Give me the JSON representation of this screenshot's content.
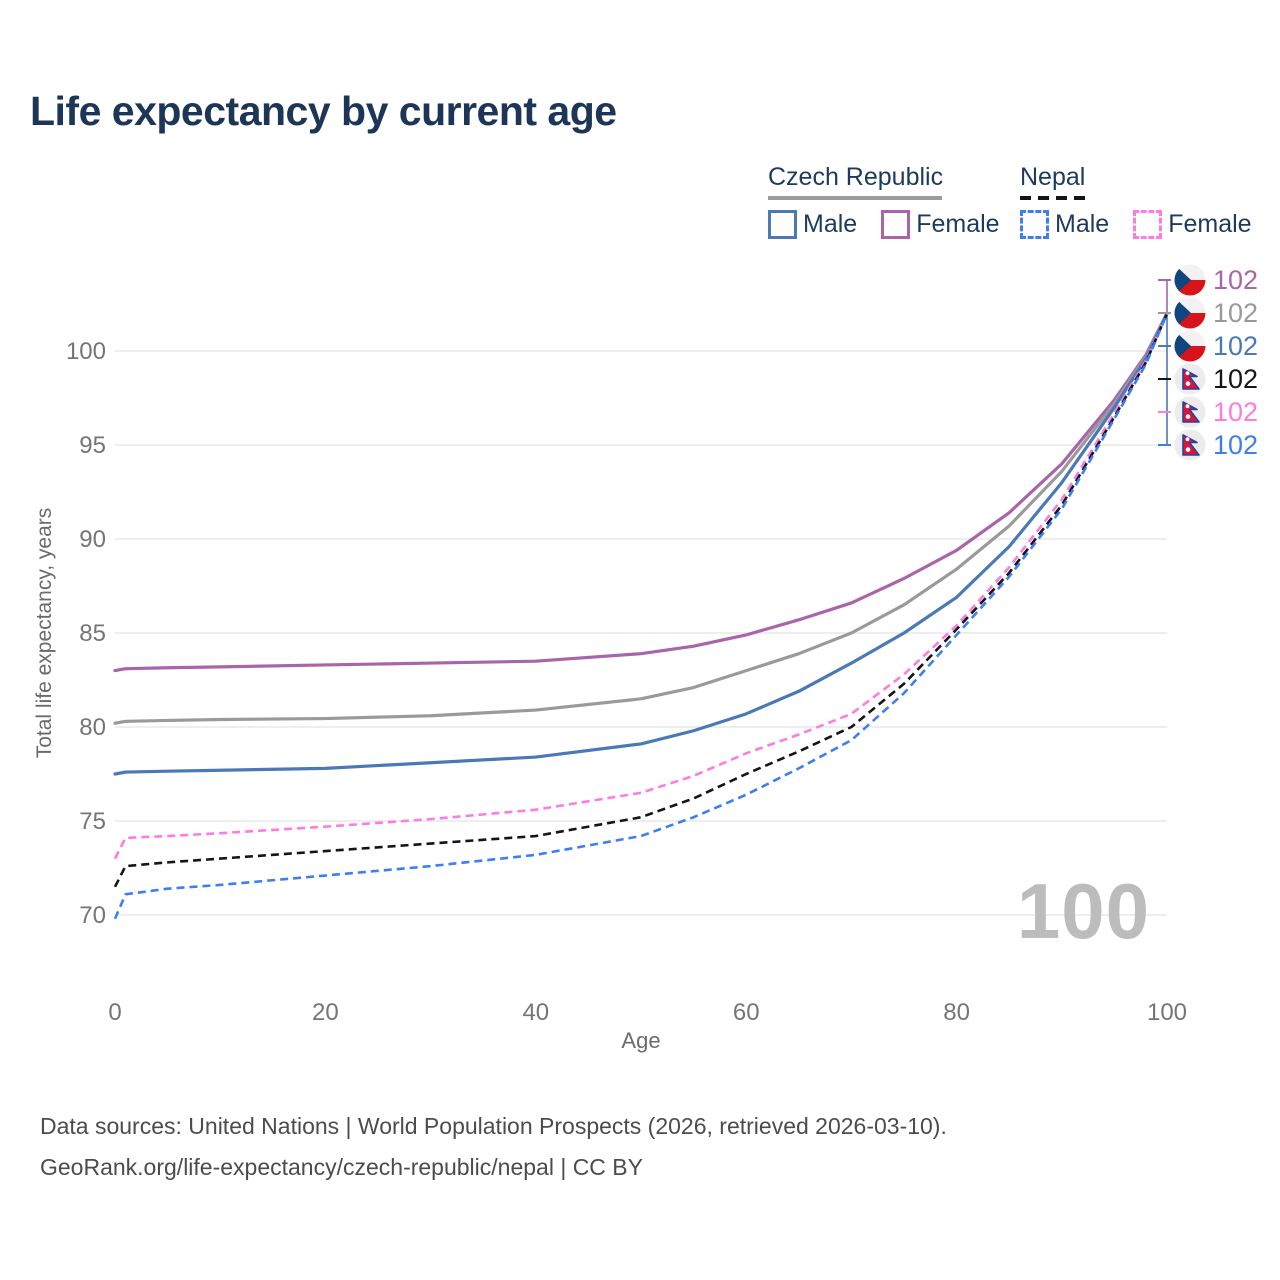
{
  "title": "Life expectancy by current age",
  "legend": {
    "groups": [
      {
        "label": "Czech Republic",
        "line_style": "solid",
        "underline_color": "#9b9b9b",
        "items": [
          {
            "label": "Male",
            "color": "#4a79b6"
          },
          {
            "label": "Female",
            "color": "#a965a9"
          }
        ]
      },
      {
        "label": "Nepal",
        "line_style": "dashed",
        "underline_color": "#141414",
        "items": [
          {
            "label": "Male",
            "color": "#3d7ff0"
          },
          {
            "label": "Female",
            "color": "#fc7ce2"
          }
        ]
      }
    ]
  },
  "chart_data": {
    "type": "line",
    "title": "Life expectancy by current age",
    "xlabel": "Age",
    "ylabel": "Total life expectancy, years",
    "xticks": [
      0,
      20,
      40,
      60,
      80,
      100
    ],
    "yticks": [
      70,
      75,
      80,
      85,
      90,
      95,
      100
    ],
    "xlim": [
      0,
      100
    ],
    "ylim": [
      68,
      103
    ],
    "grid": "horizontal",
    "legend_position": "top-right",
    "x": [
      0,
      1,
      5,
      10,
      20,
      30,
      40,
      50,
      55,
      60,
      65,
      70,
      75,
      80,
      85,
      90,
      95,
      98,
      100
    ],
    "series": [
      {
        "name": "Czech Republic Female",
        "country": "Czech Republic",
        "sex": "Female",
        "color": "#a965a9",
        "dash": false,
        "values": [
          83.0,
          83.1,
          83.15,
          83.2,
          83.3,
          83.4,
          83.5,
          83.9,
          84.3,
          84.9,
          85.7,
          86.6,
          87.9,
          89.4,
          91.4,
          94.0,
          97.4,
          99.8,
          102
        ],
        "end_label": "102"
      },
      {
        "name": "Czech Republic Both sexes",
        "country": "Czech Republic",
        "sex": "Both",
        "color": "#9a9a9a",
        "dash": false,
        "values": [
          80.2,
          80.3,
          80.35,
          80.4,
          80.45,
          80.6,
          80.9,
          81.5,
          82.1,
          83.0,
          83.9,
          85.0,
          86.5,
          88.4,
          90.7,
          93.6,
          97.2,
          99.7,
          102
        ],
        "end_label": "102"
      },
      {
        "name": "Czech Republic Male",
        "country": "Czech Republic",
        "sex": "Male",
        "color": "#4a79b6",
        "dash": false,
        "values": [
          77.5,
          77.6,
          77.65,
          77.7,
          77.8,
          78.1,
          78.4,
          79.1,
          79.8,
          80.7,
          81.9,
          83.4,
          85.0,
          86.9,
          89.6,
          93.0,
          97.0,
          99.6,
          102
        ],
        "end_label": "102"
      },
      {
        "name": "Nepal Female",
        "country": "Nepal",
        "sex": "Female",
        "color": "#fc7ce2",
        "dash": true,
        "values": [
          73.0,
          74.1,
          74.2,
          74.35,
          74.7,
          75.1,
          75.6,
          76.5,
          77.4,
          78.6,
          79.6,
          80.7,
          82.8,
          85.4,
          88.5,
          92.1,
          96.7,
          99.5,
          102
        ],
        "end_label": "102"
      },
      {
        "name": "Nepal Both sexes",
        "country": "Nepal",
        "sex": "Both",
        "color": "#151515",
        "dash": true,
        "values": [
          71.5,
          72.6,
          72.8,
          73.0,
          73.4,
          73.8,
          74.2,
          75.2,
          76.2,
          77.5,
          78.7,
          80.0,
          82.3,
          85.2,
          88.2,
          91.8,
          96.5,
          99.4,
          102
        ],
        "end_label": "102"
      },
      {
        "name": "Nepal Male",
        "country": "Nepal",
        "sex": "Male",
        "color": "#3d7ff0",
        "dash": true,
        "values": [
          69.8,
          71.1,
          71.4,
          71.6,
          72.1,
          72.6,
          73.2,
          74.2,
          75.2,
          76.4,
          77.8,
          79.3,
          81.8,
          84.9,
          88.0,
          91.6,
          96.4,
          99.3,
          102
        ],
        "end_label": "102"
      }
    ],
    "end_labels": [
      {
        "flag": "czech-republic",
        "value": "102",
        "color": "#a965a9",
        "series": "Czech Republic Female"
      },
      {
        "flag": "czech-republic",
        "value": "102",
        "color": "#9a9a9a",
        "series": "Czech Republic Both sexes"
      },
      {
        "flag": "czech-republic",
        "value": "102",
        "color": "#4a79b6",
        "series": "Czech Republic Male"
      },
      {
        "flag": "nepal",
        "value": "102",
        "color": "#151515",
        "series": "Nepal Both sexes"
      },
      {
        "flag": "nepal",
        "value": "102",
        "color": "#fc7ce2",
        "series": "Nepal Female"
      },
      {
        "flag": "nepal",
        "value": "102",
        "color": "#3d7ff0",
        "series": "Nepal Male"
      }
    ],
    "watermark": "100"
  },
  "watermark": "100",
  "source": {
    "line1": "Data sources: United Nations | World Population Prospects (2026, retrieved 2026-03-10).",
    "line2": "GeoRank.org/life-expectancy/czech-republic/nepal | CC BY"
  },
  "colors": {
    "title_text": "#1d3557",
    "axis_text": "#6b6b6b",
    "tick_text": "#757575",
    "gridline": "#e9e9e9",
    "watermark": "#bcbcbc",
    "source_text": "#4c4c4c",
    "czech_flag_blue": "#11457e",
    "czech_flag_red": "#d7141a",
    "nepal_flag_crimson": "#dc143c",
    "nepal_flag_blue": "#24439c"
  }
}
